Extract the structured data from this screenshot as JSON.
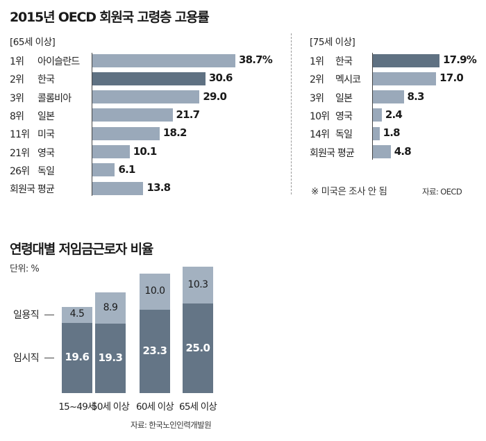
{
  "colors": {
    "bar_light": "#9aa9ba",
    "bar_dark": "#5f7182",
    "stack_dark": "#647586",
    "stack_light": "#a3b1c0",
    "axis": "#444444",
    "divider": "#999999"
  },
  "chart_data": [
    {
      "type": "bar",
      "orientation": "horizontal",
      "title": "2015년 OECD 회원국 고령층 고용률",
      "subtitle": "[65세 이상]",
      "ranks": [
        "1위",
        "2위",
        "3위",
        "8위",
        "11위",
        "21위",
        "26위",
        ""
      ],
      "categories": [
        "아이슬란드",
        "한국",
        "콜롬비아",
        "일본",
        "미국",
        "영국",
        "독일",
        "회원국 평균"
      ],
      "values": [
        38.7,
        30.6,
        29.0,
        21.7,
        18.2,
        10.1,
        6.1,
        13.8
      ],
      "labels": [
        "38.7%",
        "30.6",
        "29.0",
        "21.7",
        "18.2",
        "10.1",
        "6.1",
        "13.8"
      ],
      "highlight_index": 1,
      "xlim": [
        0,
        38.7
      ]
    },
    {
      "type": "bar",
      "orientation": "horizontal",
      "subtitle": "[75세 이상]",
      "ranks": [
        "1위",
        "2위",
        "3위",
        "10위",
        "14위",
        ""
      ],
      "categories": [
        "한국",
        "멕시코",
        "일본",
        "영국",
        "독일",
        "회원국 평균"
      ],
      "values": [
        17.9,
        17.0,
        8.3,
        2.4,
        1.8,
        4.8
      ],
      "labels": [
        "17.9%",
        "17.0",
        "8.3",
        "2.4",
        "1.8",
        "4.8"
      ],
      "highlight_index": 0,
      "xlim": [
        0,
        17.9
      ],
      "note": "※ 미국은 조사 안 됨",
      "source": "자료: OECD"
    },
    {
      "type": "bar",
      "stacked": true,
      "title": "연령대별 저임금근로자 비율",
      "unit": "단위: %",
      "categories": [
        "15~49세",
        "50세 이상",
        "60세 이상",
        "65세 이상"
      ],
      "series": [
        {
          "name": "임시직",
          "values": [
            19.6,
            19.3,
            23.3,
            25.0
          ]
        },
        {
          "name": "일용직",
          "values": [
            4.5,
            8.9,
            10.0,
            10.3
          ]
        }
      ],
      "series_labels": [
        [
          "19.6",
          "19.3",
          "23.3",
          "25.0"
        ],
        [
          "4.5",
          "8.9",
          "10.0",
          "10.3"
        ]
      ],
      "ylim": [
        0,
        35.3
      ],
      "source": "자료: 한국노인인력개발원"
    }
  ]
}
